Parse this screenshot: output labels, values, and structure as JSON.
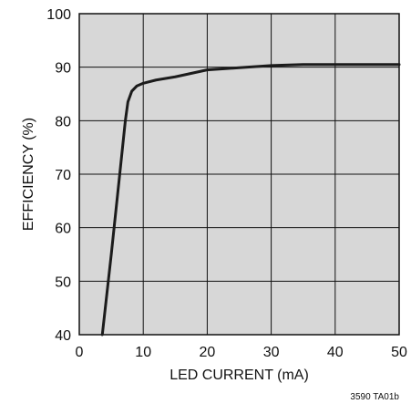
{
  "chart_data": {
    "type": "line",
    "title": "",
    "xlabel": "LED CURRENT (mA)",
    "ylabel": "EFFICIENCY (%)",
    "xlim": [
      0,
      50
    ],
    "ylim": [
      40,
      100
    ],
    "xticks": [
      0,
      10,
      20,
      30,
      40,
      50
    ],
    "yticks": [
      40,
      50,
      60,
      70,
      80,
      90,
      100
    ],
    "grid": true,
    "series": [
      {
        "x": [
          3.6,
          5,
          6.5,
          7.2,
          7.6,
          8.2,
          9,
          10,
          12,
          15,
          20,
          25,
          30,
          35,
          40,
          45,
          50
        ],
        "y": [
          40,
          55,
          72,
          80,
          83.5,
          85.5,
          86.5,
          87,
          87.6,
          88.2,
          89.5,
          89.9,
          90.3,
          90.5,
          90.5,
          90.5,
          90.5
        ]
      }
    ],
    "annotation": "3590 TA01b"
  },
  "colors": {
    "plot_background": "#d7d7d7",
    "grid": "#111111",
    "line": "#1b1b1b"
  }
}
